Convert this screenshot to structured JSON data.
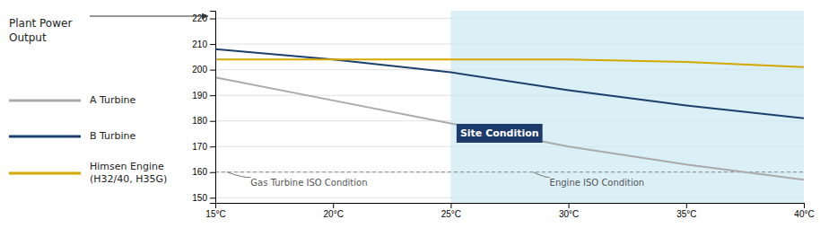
{
  "chart_data": {
    "type": "line",
    "ylabel": "Plant Power\nOutput",
    "x": [
      15,
      20,
      25,
      30,
      35,
      40
    ],
    "xlim": [
      15,
      40
    ],
    "xticks": [
      {
        "value": 15,
        "label": "15°C"
      },
      {
        "value": 20,
        "label": "20°C"
      },
      {
        "value": 25,
        "label": "25°C"
      },
      {
        "value": 30,
        "label": "30°C"
      },
      {
        "value": 35,
        "label": "35°C"
      },
      {
        "value": 40,
        "label": "40°C"
      }
    ],
    "ylim": [
      148,
      223
    ],
    "yticks": [
      150,
      160,
      170,
      180,
      190,
      200,
      210,
      220
    ],
    "grid": true,
    "legend": "left",
    "series": [
      {
        "name": "A Turbine",
        "color": "#aaaaaa",
        "values": [
          197,
          188,
          179,
          170,
          163,
          157
        ]
      },
      {
        "name": "B Turbine",
        "color": "#1c3f6e",
        "values": [
          208,
          204,
          199,
          192,
          186,
          181
        ]
      },
      {
        "name": "Himsen Engine\n(H32/40, H35G)",
        "color": "#d4a800",
        "values": [
          204,
          204,
          204,
          204,
          203,
          201
        ]
      }
    ],
    "spans": [
      {
        "x0": 25,
        "x1": 40,
        "color": "#cce8f4"
      }
    ],
    "hlines": [
      160
    ],
    "annotations": [
      {
        "text": "Gas Turbine ISO Condition",
        "x": 16.5,
        "y": 154.5,
        "arrow_to": [
          15.5,
          160
        ]
      },
      {
        "text": "Engine ISO Condition",
        "x": 29.2,
        "y": 154.5,
        "arrow_to": [
          28.5,
          160
        ]
      },
      {
        "text": "Site Condition",
        "x": 25.4,
        "y": 175,
        "color": "#1c3a6a"
      }
    ]
  }
}
